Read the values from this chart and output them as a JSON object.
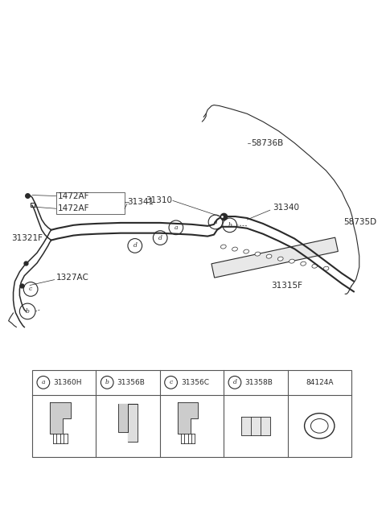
{
  "bg_color": "#ffffff",
  "line_color": "#2a2a2a",
  "label_color": "#000000",
  "fig_width": 4.8,
  "fig_height": 6.55,
  "dpi": 100,
  "parts_table": {
    "items": [
      {
        "letter": "a",
        "code": "31360H"
      },
      {
        "letter": "b",
        "code": "31356B"
      },
      {
        "letter": "c",
        "code": "31356C"
      },
      {
        "letter": "d",
        "code": "31358B"
      },
      {
        "letter": "",
        "code": "84124A"
      }
    ]
  }
}
